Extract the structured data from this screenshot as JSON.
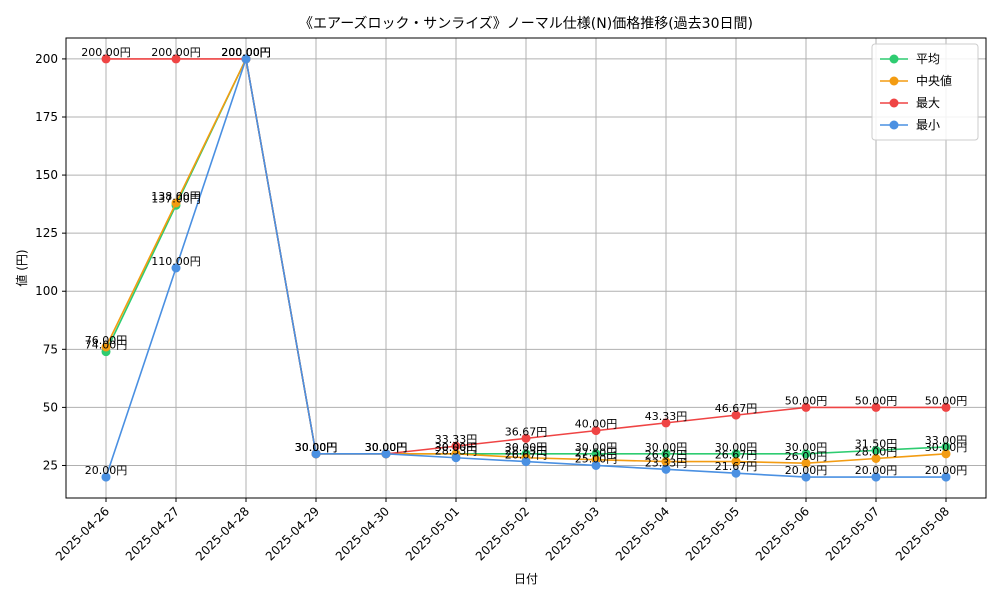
{
  "chart_data": {
    "type": "line",
    "title": "《エアーズロック・サンライズ》ノーマル仕様(N)価格推移(過去30日間)",
    "xlabel": "日付",
    "ylabel": "値 (円)",
    "categories": [
      "2025-04-26",
      "2025-04-27",
      "2025-04-28",
      "2025-04-29",
      "2025-04-30",
      "2025-05-01",
      "2025-05-02",
      "2025-05-03",
      "2025-05-04",
      "2025-05-05",
      "2025-05-06",
      "2025-05-07",
      "2025-05-08"
    ],
    "ylim": [
      11,
      209
    ],
    "yticks": [
      25,
      50,
      75,
      100,
      125,
      150,
      175,
      200
    ],
    "grid": true,
    "legend_position": "top-right",
    "value_suffix": "円",
    "series": [
      {
        "name": "平均",
        "color": "#2ecc71",
        "values": [
          74.0,
          137.0,
          200.0,
          30.0,
          30.0,
          30.0,
          30.0,
          30.0,
          30.0,
          30.0,
          30.0,
          31.5,
          33.0
        ]
      },
      {
        "name": "中央値",
        "color": "#f39c12",
        "values": [
          76.0,
          138.0,
          200.0,
          30.0,
          30.0,
          30.0,
          28.33,
          27.5,
          26.67,
          26.67,
          26.0,
          28.0,
          30.0
        ]
      },
      {
        "name": "最大",
        "color": "#ef4444",
        "values": [
          200.0,
          200.0,
          200.0,
          30.0,
          30.0,
          33.33,
          36.67,
          40.0,
          43.33,
          46.67,
          50.0,
          50.0,
          50.0
        ]
      },
      {
        "name": "最小",
        "color": "#4a90e2",
        "values": [
          20.0,
          110.0,
          200.0,
          30.0,
          30.0,
          28.33,
          26.67,
          25.0,
          23.33,
          21.67,
          20.0,
          20.0,
          20.0
        ]
      }
    ]
  }
}
